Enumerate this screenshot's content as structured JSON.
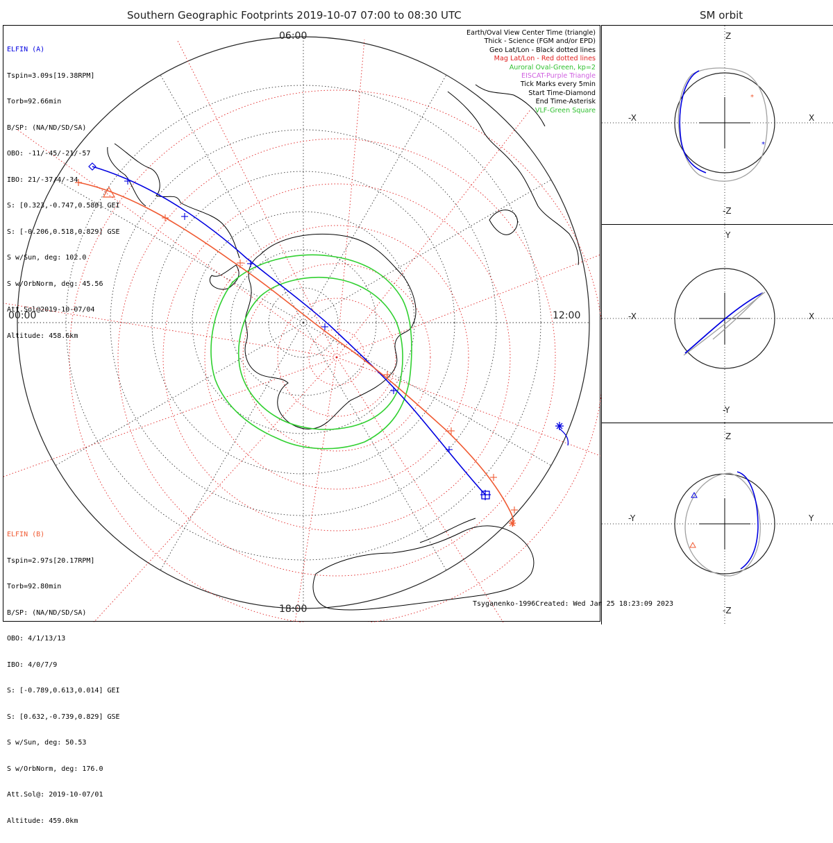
{
  "title": "Southern Geographic Footprints 2019-10-07 07:00 to 08:30 UTC",
  "sm_title": "SM orbit",
  "colors": {
    "elfin_a": "#0000e0",
    "elfin_b": "#f05a32",
    "geo_grid": "#222222",
    "mag_grid": "#e02020",
    "auroral_oval": "#30d030",
    "eiscat": "#d060e0",
    "orbit_gray": "#a0a0a0"
  },
  "elfin_a": {
    "name": "ELFIN (A)",
    "lines": [
      "Tspin=3.09s[19.38RPM]",
      "Torb=92.66min",
      "B/SP: (NA/ND/SD/SA)",
      "OBO: -11/-45/-21/-57",
      "IBO: 21/-37/4/-34",
      "S: [0.323,-0.747,0.580] GEI",
      "S: [-0.206,0.518,0.829] GSE",
      "S w/Sun, deg: 102.0",
      "S w/OrbNorm, deg: 45.56",
      "Att.Sol@2019-10-07/04",
      "Altitude: 458.6km"
    ]
  },
  "elfin_b": {
    "name": "ELFIN (B)",
    "lines": [
      "Tspin=2.97s[20.17RPM]",
      "Torb=92.80min",
      "B/SP: (NA/ND/SD/SA)",
      "OBO: 4/1/13/13",
      "IBO: 4/0/7/9",
      "S: [-0.789,0.613,0.014] GEI",
      "S: [0.632,-0.739,0.829] GSE",
      "S w/Sun, deg: 50.53",
      "S w/OrbNorm, deg: 176.0",
      "Att.Sol@: 2019-10-07/01",
      "Altitude: 459.0km"
    ]
  },
  "legend": [
    {
      "text": "Earth/Oval View Center Time (triangle)",
      "color": "#000000"
    },
    {
      "text": "Thick - Science (FGM and/or EPD)",
      "color": "#000000"
    },
    {
      "text": "Geo Lat/Lon - Black dotted lines",
      "color": "#000000"
    },
    {
      "text": "Mag Lat/Lon - Red dotted lines",
      "color": "#e02020"
    },
    {
      "text": "Auroral Oval-Green, kp=2",
      "color": "#30c030"
    },
    {
      "text": "EISCAT-Purple Triangle",
      "color": "#d060e0"
    },
    {
      "text": "Tick Marks every 5min",
      "color": "#000000"
    },
    {
      "text": "Start Time-Diamond",
      "color": "#000000"
    },
    {
      "text": "End Time-Asterisk",
      "color": "#000000"
    },
    {
      "text": "VLF-Green Square",
      "color": "#30c030"
    }
  ],
  "time_labels": {
    "top": "06:00",
    "left": "00:00",
    "right": "12:00",
    "bottom": "18:00"
  },
  "credits": {
    "model": "Tsyganenko-1996",
    "created": "Created: Wed Jan 25 18:23:09 2023"
  },
  "sm_panels": [
    {
      "up": "Z",
      "down": "-Z",
      "left": "-X",
      "right": "X"
    },
    {
      "up": "Y",
      "down": "-Y",
      "left": "-X",
      "right": "X"
    },
    {
      "up": "Z",
      "down": "-Z",
      "left": "-Y",
      "right": "Y"
    }
  ]
}
